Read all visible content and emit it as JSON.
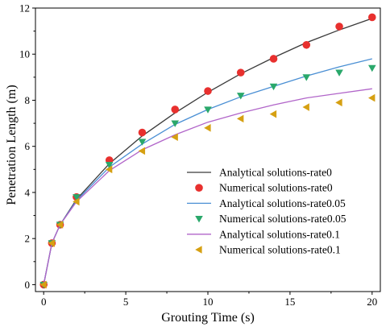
{
  "chart_data": {
    "type": "line",
    "xlabel": "Grouting Time (s)",
    "ylabel": "Penetration Length (m)",
    "xlim": [
      -0.5,
      20.5
    ],
    "ylim": [
      -0.3,
      12
    ],
    "xticks": [
      0,
      5,
      10,
      15,
      20
    ],
    "yticks": [
      0,
      2,
      4,
      6,
      8,
      10,
      12
    ],
    "xtick_labels": [
      "0",
      "5",
      "10",
      "15",
      "20"
    ],
    "ytick_labels": [
      "0",
      "2",
      "4",
      "6",
      "8",
      "10",
      "12"
    ],
    "grid": false,
    "legend_position": "right",
    "series": [
      {
        "name": "Analytical solutions-rate0",
        "kind": "line",
        "color": "#3a3a3a",
        "x": [
          0,
          0.5,
          1,
          2,
          4,
          6,
          8,
          10,
          12,
          14,
          16,
          18,
          20
        ],
        "y": [
          0,
          1.8,
          2.6,
          3.7,
          5.25,
          6.45,
          7.45,
          8.35,
          9.15,
          9.85,
          10.5,
          11.05,
          11.55
        ]
      },
      {
        "name": "Numerical solutions-rate0",
        "kind": "scatter",
        "marker": "circle",
        "color": "#e8302e",
        "x": [
          0,
          0.5,
          1,
          2,
          4,
          6,
          8,
          10,
          12,
          14,
          16,
          18,
          20
        ],
        "y": [
          0,
          1.8,
          2.6,
          3.8,
          5.4,
          6.6,
          7.6,
          8.4,
          9.2,
          9.8,
          10.4,
          11.2,
          11.6
        ]
      },
      {
        "name": "Analytical solutions-rate0.05",
        "kind": "line",
        "color": "#4a8fd4",
        "x": [
          0,
          0.5,
          1,
          2,
          4,
          6,
          8,
          10,
          12,
          14,
          16,
          18,
          20
        ],
        "y": [
          0,
          1.8,
          2.6,
          3.65,
          5.1,
          6.1,
          6.95,
          7.6,
          8.15,
          8.6,
          9.05,
          9.45,
          9.8
        ]
      },
      {
        "name": "Numerical solutions-rate0.05",
        "kind": "scatter",
        "marker": "triangle-down",
        "color": "#2aa86b",
        "x": [
          0,
          0.5,
          1,
          2,
          4,
          6,
          8,
          10,
          12,
          14,
          16,
          18,
          20
        ],
        "y": [
          0,
          1.8,
          2.6,
          3.8,
          5.2,
          6.2,
          7.0,
          7.6,
          8.2,
          8.6,
          9.0,
          9.2,
          9.4
        ]
      },
      {
        "name": "Analytical solutions-rate0.1",
        "kind": "line",
        "color": "#b165c9",
        "x": [
          0,
          0.5,
          1,
          2,
          4,
          6,
          8,
          10,
          12,
          14,
          16,
          18,
          20
        ],
        "y": [
          0,
          1.8,
          2.6,
          3.6,
          4.95,
          5.85,
          6.5,
          7.05,
          7.45,
          7.8,
          8.1,
          8.3,
          8.5
        ]
      },
      {
        "name": "Numerical solutions-rate0.1",
        "kind": "scatter",
        "marker": "triangle-left",
        "color": "#d6a012",
        "x": [
          0,
          0.5,
          1,
          2,
          4,
          6,
          8,
          10,
          12,
          14,
          16,
          18,
          20
        ],
        "y": [
          0,
          1.8,
          2.6,
          3.6,
          5.0,
          5.8,
          6.4,
          6.8,
          7.2,
          7.4,
          7.7,
          7.9,
          8.1
        ]
      }
    ]
  }
}
